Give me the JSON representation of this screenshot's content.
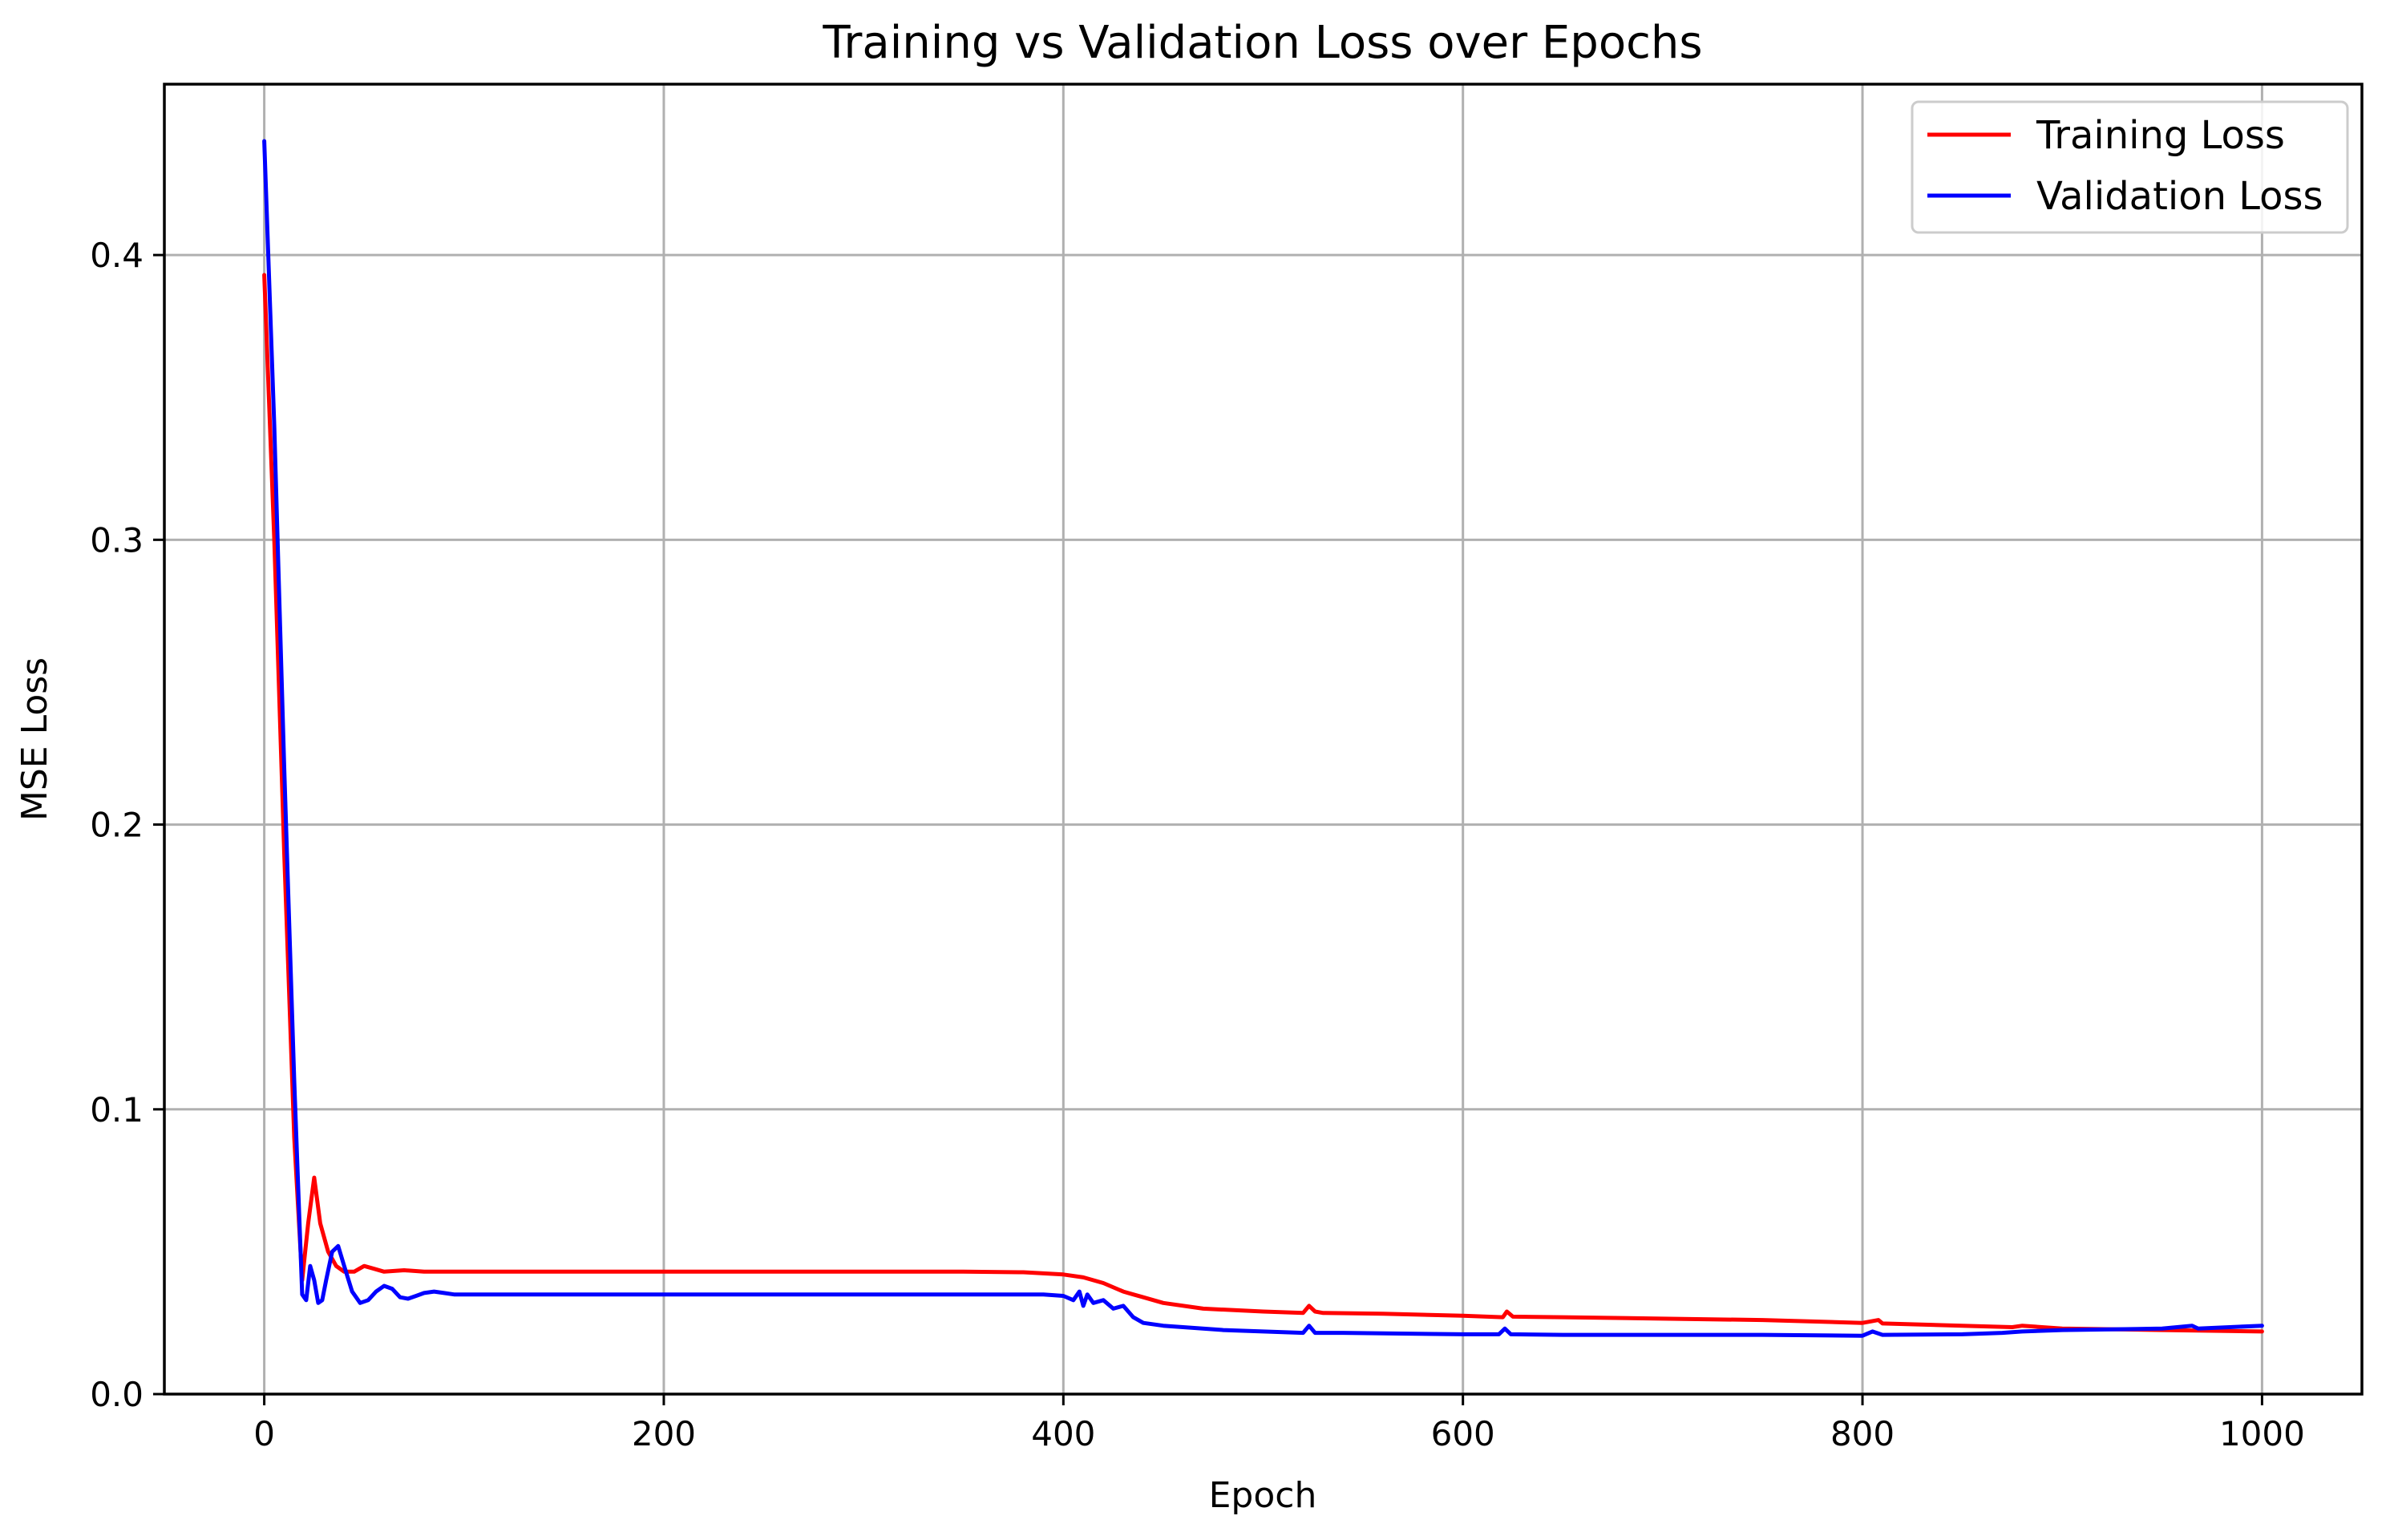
{
  "chart_data": {
    "type": "line",
    "title": "Training vs Validation Loss over Epochs",
    "xlabel": "Epoch",
    "ylabel": "MSE Loss",
    "xlim": [
      -50,
      1050
    ],
    "ylim": [
      0,
      0.46
    ],
    "x_ticks": [
      0,
      200,
      400,
      600,
      800,
      1000
    ],
    "x_tick_labels": [
      "0",
      "200",
      "400",
      "600",
      "800",
      "1000"
    ],
    "y_ticks": [
      0.0,
      0.1,
      0.2,
      0.3,
      0.4
    ],
    "y_tick_labels": [
      "0.0",
      "0.1",
      "0.2",
      "0.3",
      "0.4"
    ],
    "grid": true,
    "legend_position": "top-right",
    "series": [
      {
        "name": "Training Loss",
        "color": "#ff0000",
        "x": [
          0,
          5,
          10,
          15,
          19,
          22,
          25,
          28,
          32,
          36,
          40,
          45,
          50,
          55,
          60,
          70,
          80,
          100,
          150,
          200,
          250,
          300,
          350,
          380,
          400,
          410,
          420,
          430,
          435,
          440,
          450,
          470,
          500,
          520,
          523,
          526,
          530,
          560,
          600,
          620,
          622,
          625,
          650,
          700,
          750,
          800,
          808,
          810,
          850,
          875,
          880,
          900,
          950,
          1000
        ],
        "y": [
          0.393,
          0.3,
          0.19,
          0.09,
          0.04,
          0.06,
          0.076,
          0.06,
          0.05,
          0.045,
          0.043,
          0.043,
          0.045,
          0.044,
          0.043,
          0.0435,
          0.043,
          0.043,
          0.043,
          0.043,
          0.043,
          0.043,
          0.043,
          0.0428,
          0.042,
          0.041,
          0.039,
          0.036,
          0.035,
          0.034,
          0.032,
          0.03,
          0.029,
          0.0285,
          0.031,
          0.029,
          0.0285,
          0.0282,
          0.0275,
          0.027,
          0.029,
          0.0272,
          0.027,
          0.0265,
          0.026,
          0.025,
          0.026,
          0.0248,
          0.024,
          0.0235,
          0.024,
          0.023,
          0.0225,
          0.022
        ]
      },
      {
        "name": "Validation Loss",
        "color": "#0000ff",
        "x": [
          0,
          5,
          10,
          15,
          19,
          21,
          23,
          25,
          27,
          29,
          31,
          34,
          37,
          40,
          44,
          48,
          52,
          56,
          60,
          64,
          68,
          72,
          76,
          80,
          85,
          90,
          95,
          100,
          110,
          150,
          200,
          300,
          350,
          390,
          400,
          405,
          408,
          410,
          412,
          415,
          420,
          425,
          430,
          435,
          440,
          450,
          480,
          500,
          520,
          523,
          526,
          540,
          600,
          618,
          621,
          624,
          650,
          700,
          750,
          800,
          805,
          810,
          850,
          870,
          880,
          900,
          950,
          965,
          968,
          1000
        ],
        "y": [
          0.44,
          0.34,
          0.22,
          0.11,
          0.035,
          0.033,
          0.045,
          0.04,
          0.032,
          0.033,
          0.04,
          0.05,
          0.052,
          0.045,
          0.036,
          0.032,
          0.033,
          0.036,
          0.038,
          0.037,
          0.034,
          0.0335,
          0.0345,
          0.0355,
          0.036,
          0.0355,
          0.035,
          0.035,
          0.035,
          0.035,
          0.035,
          0.035,
          0.035,
          0.035,
          0.0345,
          0.033,
          0.036,
          0.031,
          0.035,
          0.032,
          0.033,
          0.03,
          0.031,
          0.027,
          0.025,
          0.024,
          0.0225,
          0.022,
          0.0215,
          0.024,
          0.0215,
          0.0215,
          0.021,
          0.021,
          0.023,
          0.021,
          0.0208,
          0.0208,
          0.0208,
          0.0205,
          0.022,
          0.0208,
          0.021,
          0.0215,
          0.022,
          0.0225,
          0.023,
          0.024,
          0.023,
          0.024
        ]
      }
    ]
  }
}
